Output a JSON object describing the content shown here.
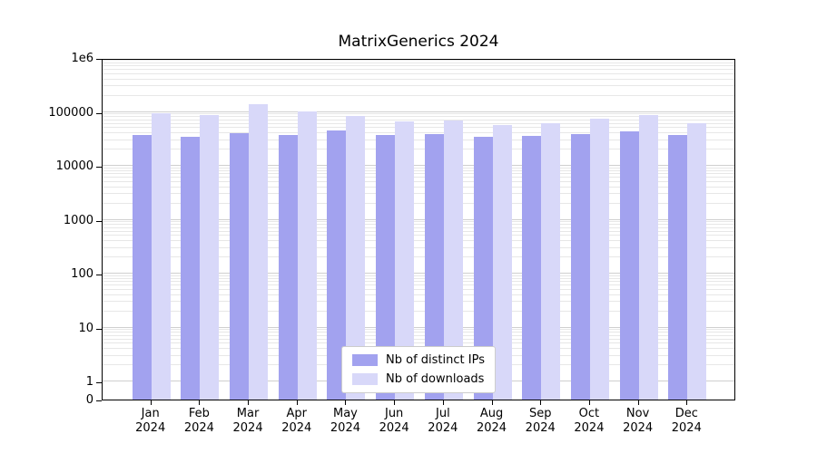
{
  "chart_data": {
    "type": "bar",
    "title": "MatrixGenerics 2024",
    "year": "2024",
    "categories": [
      "Jan",
      "Feb",
      "Mar",
      "Apr",
      "May",
      "Jun",
      "Jul",
      "Aug",
      "Sep",
      "Oct",
      "Nov",
      "Dec"
    ],
    "series": [
      {
        "name": "Nb of distinct IPs",
        "color": "#a2a2ef",
        "values": [
          38000,
          35000,
          41000,
          38000,
          46000,
          37000,
          39000,
          34000,
          36000,
          39000,
          44000,
          38000
        ]
      },
      {
        "name": "Nb of downloads",
        "color": "#d8d8f9",
        "values": [
          93000,
          87000,
          138000,
          104000,
          83000,
          66000,
          69000,
          58000,
          62000,
          74000,
          86000,
          62000
        ]
      }
    ],
    "yscale": "symlog",
    "ylim": [
      0,
      1000000
    ],
    "yticks": {
      "values": [
        0,
        1,
        10,
        100,
        1000,
        10000,
        100000,
        1000000
      ],
      "labels": [
        "0",
        "1",
        "10",
        "100",
        "1000",
        "10000",
        "100000",
        "1e6"
      ]
    },
    "grid": true,
    "legend_position": "lower center"
  }
}
